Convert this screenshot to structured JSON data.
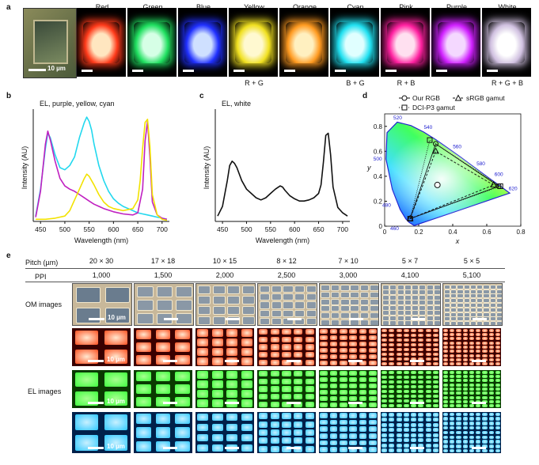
{
  "panel_a": {
    "letter": "a",
    "scale_bar_label": "10 µm",
    "colors": [
      {
        "name": "Red",
        "sub": "",
        "glow": "#ff3a1a",
        "center": "#ffe6c0"
      },
      {
        "name": "Green",
        "sub": "",
        "glow": "#20e060",
        "center": "#d6ffe6"
      },
      {
        "name": "Blue",
        "sub": "",
        "glow": "#2030ff",
        "center": "#cfe0ff"
      },
      {
        "name": "Yellow",
        "sub": "R + G",
        "glow": "#f0e020",
        "center": "#fff9d0"
      },
      {
        "name": "Orange",
        "sub": "",
        "glow": "#ff9a20",
        "center": "#fff0c0"
      },
      {
        "name": "Cyan",
        "sub": "B + G",
        "glow": "#20e0f0",
        "center": "#e0ffff"
      },
      {
        "name": "Pink",
        "sub": "R + B",
        "glow": "#ff20a0",
        "center": "#ffe0f0"
      },
      {
        "name": "Purple",
        "sub": "",
        "glow": "#d020ff",
        "center": "#f4d8ff"
      },
      {
        "name": "White",
        "sub": "R + G + B",
        "glow": "#d0c0e0",
        "center": "#ffffff"
      }
    ]
  },
  "chart_data": [
    {
      "panel": "b",
      "type": "line",
      "title": "EL, purple, yellow, cyan",
      "xlabel": "Wavelength (nm)",
      "ylabel": "Intensity (AU)",
      "xlim": [
        435,
        715
      ],
      "x_ticks": [
        450,
        500,
        550,
        600,
        650,
        700
      ],
      "series": [
        {
          "name": "cyan",
          "color": "#22d8ee",
          "x": [
            440,
            450,
            460,
            465,
            470,
            480,
            490,
            500,
            510,
            520,
            530,
            540,
            545,
            550,
            555,
            560,
            570,
            580,
            590,
            600,
            610,
            620,
            630,
            640,
            650,
            660,
            670,
            680,
            690,
            700,
            710
          ],
          "y": [
            0.05,
            0.3,
            0.68,
            0.82,
            0.78,
            0.62,
            0.5,
            0.48,
            0.52,
            0.6,
            0.78,
            0.92,
            0.97,
            0.93,
            0.85,
            0.72,
            0.52,
            0.38,
            0.28,
            0.21,
            0.17,
            0.14,
            0.12,
            0.1,
            0.08,
            0.07,
            0.06,
            0.05,
            0.04,
            0.03,
            0.02
          ]
        },
        {
          "name": "purple",
          "color": "#c020c0",
          "x": [
            440,
            450,
            460,
            465,
            470,
            480,
            490,
            500,
            510,
            520,
            530,
            540,
            550,
            560,
            580,
            600,
            620,
            640,
            650,
            660,
            665,
            670,
            675,
            680,
            690,
            700,
            710
          ],
          "y": [
            0.04,
            0.28,
            0.72,
            0.84,
            0.76,
            0.56,
            0.4,
            0.33,
            0.3,
            0.28,
            0.25,
            0.22,
            0.19,
            0.16,
            0.12,
            0.09,
            0.07,
            0.06,
            0.08,
            0.3,
            0.75,
            0.93,
            0.6,
            0.18,
            0.06,
            0.03,
            0.02
          ]
        },
        {
          "name": "yellow",
          "color": "#f2e200",
          "x": [
            440,
            460,
            480,
            500,
            510,
            520,
            530,
            540,
            545,
            550,
            560,
            570,
            580,
            590,
            600,
            620,
            640,
            650,
            655,
            660,
            665,
            670,
            675,
            680,
            690,
            700,
            710
          ],
          "y": [
            0.02,
            0.02,
            0.03,
            0.05,
            0.1,
            0.2,
            0.3,
            0.4,
            0.44,
            0.42,
            0.34,
            0.25,
            0.18,
            0.14,
            0.12,
            0.1,
            0.12,
            0.2,
            0.38,
            0.68,
            0.92,
            0.95,
            0.7,
            0.25,
            0.06,
            0.02,
            0.01
          ]
        }
      ]
    },
    {
      "panel": "c",
      "type": "line",
      "title": "EL, white",
      "xlabel": "Wavelength (nm)",
      "ylabel": "Intensity (AU)",
      "xlim": [
        435,
        715
      ],
      "x_ticks": [
        450,
        500,
        550,
        600,
        650,
        700
      ],
      "series": [
        {
          "name": "white",
          "color": "#111111",
          "x": [
            440,
            450,
            460,
            465,
            470,
            475,
            480,
            490,
            500,
            510,
            520,
            530,
            540,
            550,
            560,
            570,
            575,
            580,
            590,
            600,
            610,
            620,
            630,
            640,
            650,
            655,
            660,
            665,
            670,
            675,
            680,
            690,
            700,
            710
          ],
          "y": [
            0.05,
            0.14,
            0.38,
            0.52,
            0.56,
            0.54,
            0.5,
            0.38,
            0.3,
            0.26,
            0.22,
            0.2,
            0.22,
            0.26,
            0.3,
            0.33,
            0.32,
            0.29,
            0.24,
            0.21,
            0.19,
            0.19,
            0.2,
            0.22,
            0.26,
            0.34,
            0.55,
            0.8,
            0.82,
            0.62,
            0.32,
            0.13,
            0.08,
            0.05
          ]
        }
      ]
    },
    {
      "panel": "d",
      "type": "scatter",
      "title": "",
      "xlabel": "x",
      "ylabel": "y",
      "xlim": [
        0,
        0.8
      ],
      "ylim": [
        0,
        0.9
      ],
      "x_ticks": [
        0,
        0.2,
        0.4,
        0.6,
        0.8
      ],
      "y_ticks": [
        0,
        0.2,
        0.4,
        0.6,
        0.8
      ],
      "locus_labels": [
        "460",
        "480",
        "500",
        "520",
        "540",
        "560",
        "580",
        "600",
        "620"
      ],
      "legend": [
        "Our RGB",
        "sRGB gamut",
        "DCI-P3 gamut"
      ],
      "our_rgb": [
        [
          0.67,
          0.32
        ],
        [
          0.3,
          0.66
        ],
        [
          0.15,
          0.06
        ]
      ],
      "white_point": [
        0.31,
        0.33
      ],
      "srgb": [
        [
          0.64,
          0.33
        ],
        [
          0.3,
          0.6
        ],
        [
          0.15,
          0.06
        ]
      ],
      "dcip3": [
        [
          0.68,
          0.32
        ],
        [
          0.265,
          0.69
        ],
        [
          0.15,
          0.06
        ]
      ]
    }
  ],
  "panel_e": {
    "letter": "e",
    "pitch_label": "Pitch (µm)",
    "ppi_label": "PPI",
    "row_labels": {
      "om": "OM images",
      "el": "EL images"
    },
    "scale_bar_label": "10 µm",
    "columns": [
      {
        "pitch": "20 × 30",
        "ppi": "1,000",
        "nx": 2,
        "ny": 2
      },
      {
        "pitch": "17 × 18",
        "ppi": "1,500",
        "nx": 3,
        "ny": 3
      },
      {
        "pitch": "10 × 15",
        "ppi": "2,000",
        "nx": 4,
        "ny": 4
      },
      {
        "pitch": "8 × 12",
        "ppi": "2,500",
        "nx": 5,
        "ny": 5
      },
      {
        "pitch": "7 × 10",
        "ppi": "3,000",
        "nx": 6,
        "ny": 6
      },
      {
        "pitch": "5 × 7",
        "ppi": "4,100",
        "nx": 8,
        "ny": 8
      },
      {
        "pitch": "5 × 5",
        "ppi": "5,100",
        "nx": 9,
        "ny": 9
      }
    ],
    "el_colors": [
      {
        "name": "red",
        "bg": "#3a0000",
        "pix": "#ff5020",
        "core": "#ffe8d0"
      },
      {
        "name": "green",
        "bg": "#0a3a00",
        "pix": "#40ff40",
        "core": "#a8ff90"
      },
      {
        "name": "blue",
        "bg": "#00204a",
        "pix": "#30c8ff",
        "core": "#c8f0ff"
      }
    ]
  },
  "panel_letters": {
    "b": "b",
    "c": "c",
    "d": "d"
  }
}
